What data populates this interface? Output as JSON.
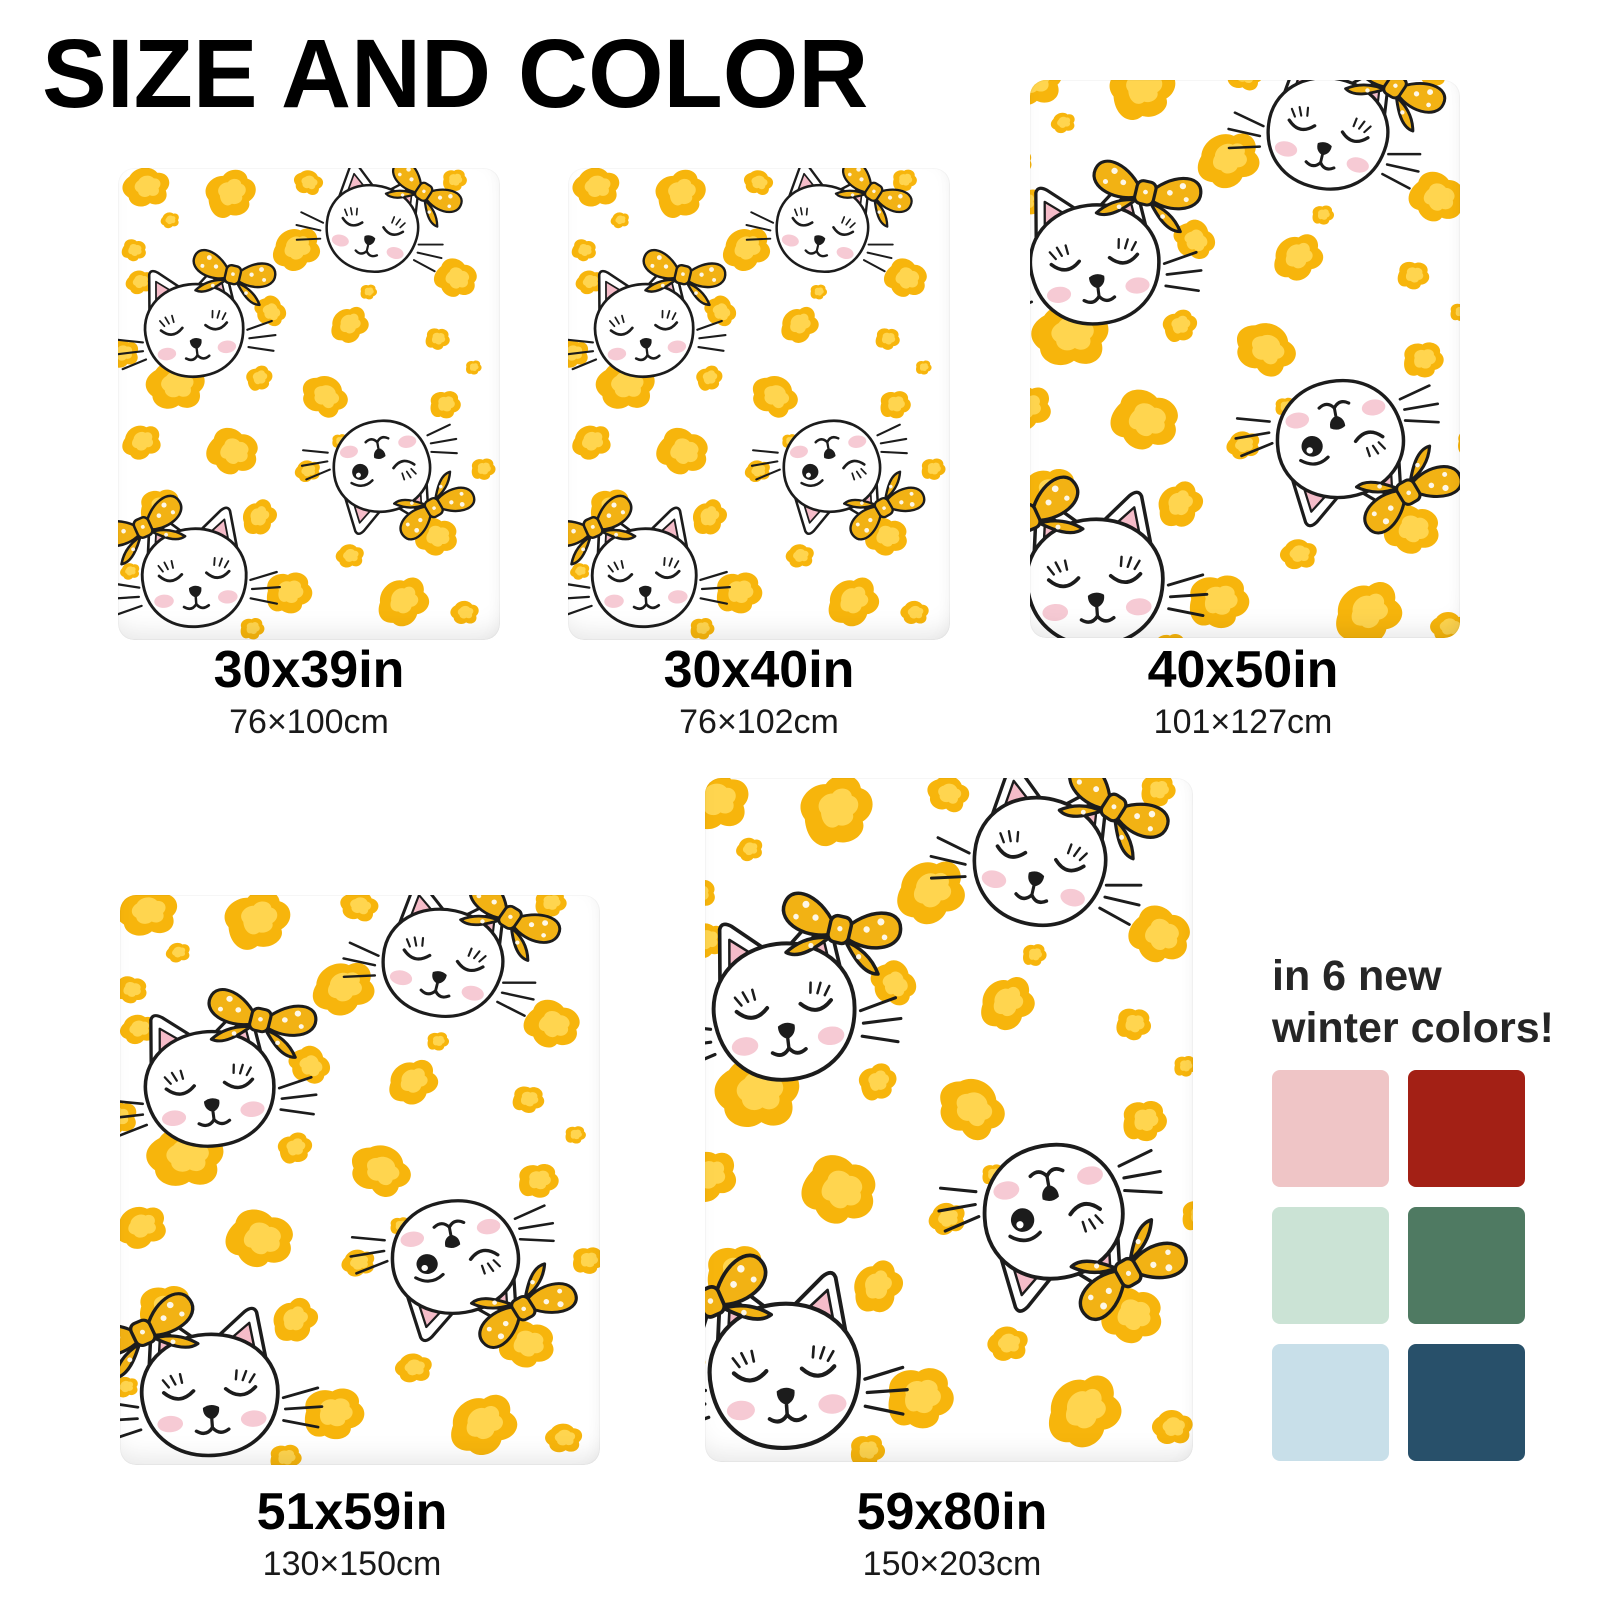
{
  "title": "SIZE AND COLOR",
  "sizes": [
    {
      "id": "30x39",
      "inches": "30x39in",
      "cm": "76×100cm"
    },
    {
      "id": "30x40",
      "inches": "30x40in",
      "cm": "76×102cm"
    },
    {
      "id": "40x50",
      "inches": "40x50in",
      "cm": "101×127cm"
    },
    {
      "id": "51x59",
      "inches": "51x59in",
      "cm": "130×150cm"
    },
    {
      "id": "59x80",
      "inches": "59x80in",
      "cm": "150×203cm"
    }
  ],
  "color_section": {
    "heading_line1": "in 6 new",
    "heading_line2": "winter colors!",
    "swatches": [
      {
        "name": "blush-pink",
        "hex": "#EFC5C6"
      },
      {
        "name": "brick-red",
        "hex": "#A32015"
      },
      {
        "name": "mint-green",
        "hex": "#CBE3D5"
      },
      {
        "name": "pine-green",
        "hex": "#4F7A62"
      },
      {
        "name": "ice-blue",
        "hex": "#C8DFE9"
      },
      {
        "name": "deep-teal-blue",
        "hex": "#28506A"
      }
    ]
  },
  "pattern": {
    "description": "white blanket with yellow leopard spots and cute white cat faces wearing yellow polka-dot bows",
    "colors": {
      "spot_gold": "#F7B50C",
      "spot_light": "#FFD54F",
      "bow_gold": "#F2B214",
      "ear_pink": "#F5BCC9",
      "cheek_pink": "#F6CAD4",
      "outline": "#1C1C1C"
    }
  }
}
